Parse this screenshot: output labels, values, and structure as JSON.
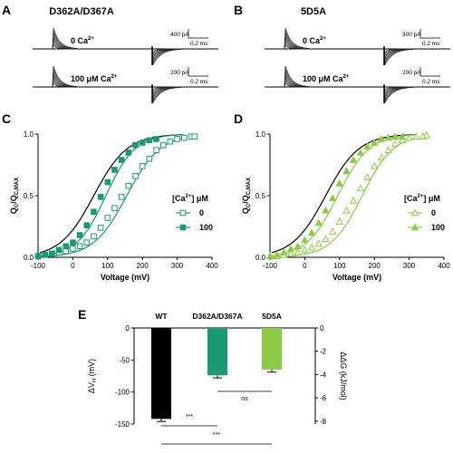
{
  "colors": {
    "teal": "#1a9a72",
    "lime": "#8ccc44",
    "black": "#000000",
    "wt_fit": "#000000"
  },
  "chart_data": [
    {
      "panel": "A",
      "type": "line",
      "title": "D362A/D367A",
      "traces": [
        {
          "label": "0 Ca",
          "label_sup": "2+",
          "scale_current": "400 pA",
          "scale_time": "0.2 ms"
        },
        {
          "label": "100 μM Ca",
          "label_sup": "2+",
          "scale_current": "200 pA",
          "scale_time": "0.2 ms"
        }
      ]
    },
    {
      "panel": "B",
      "type": "line",
      "title": "5D5A",
      "traces": [
        {
          "label": "0 Ca",
          "label_sup": "2+",
          "scale_current": "300 pA",
          "scale_time": "0.2 ms"
        },
        {
          "label": "100 μM Ca",
          "label_sup": "2+",
          "scale_current": "200 pA",
          "scale_time": "0.2 ms"
        }
      ]
    },
    {
      "panel": "C",
      "type": "scatter",
      "xlabel": "Voltage (mV)",
      "ylabel": "Q_C/Q_C,MAX",
      "ylabel_main": "Q",
      "ylabel_sub1": "C",
      "ylabel_mid": "/Q",
      "ylabel_sub2": "C,MAX",
      "xlim": [
        -100,
        400
      ],
      "ylim": [
        0,
        1
      ],
      "xticks": [
        "-100",
        "0",
        "100",
        "200",
        "300",
        "400"
      ],
      "yticks": [
        "0.0",
        "0.5",
        "1.0"
      ],
      "legend_title": "[Ca",
      "legend_title_sup": "2+",
      "legend_title_end": "] μM",
      "legend_position": "right",
      "fit_wt": {
        "vh": 60,
        "slope": 48
      },
      "series": [
        {
          "name": "0",
          "color": "#1a9a72",
          "marker": "square-open",
          "vh": 155,
          "slope": 48,
          "x": [
            -100,
            -80,
            -60,
            -40,
            -20,
            0,
            20,
            40,
            60,
            80,
            100,
            120,
            140,
            160,
            180,
            200,
            220,
            240,
            260,
            280,
            300,
            320,
            340,
            350
          ],
          "y": [
            0.01,
            0.02,
            0.03,
            0.04,
            0.05,
            0.07,
            0.09,
            0.12,
            0.17,
            0.24,
            0.32,
            0.4,
            0.49,
            0.58,
            0.66,
            0.74,
            0.8,
            0.87,
            0.91,
            0.94,
            0.96,
            0.97,
            0.98,
            0.98
          ]
        },
        {
          "name": "100",
          "color": "#1a9a72",
          "marker": "square-filled",
          "vh": 95,
          "slope": 42,
          "x": [
            -100,
            -80,
            -60,
            -40,
            -20,
            0,
            20,
            40,
            60,
            80,
            100,
            120,
            140,
            160,
            180,
            200,
            220,
            240
          ],
          "y": [
            0.01,
            0.02,
            0.03,
            0.06,
            0.09,
            0.12,
            0.18,
            0.26,
            0.37,
            0.49,
            0.61,
            0.71,
            0.79,
            0.85,
            0.91,
            0.93,
            0.95,
            0.96
          ]
        }
      ]
    },
    {
      "panel": "D",
      "type": "scatter",
      "xlabel": "Voltage (mV)",
      "ylabel": "Q_C/Q_C,MAX",
      "ylabel_main": "Q",
      "ylabel_sub1": "C",
      "ylabel_mid": "/Q",
      "ylabel_sub2": "C,MAX",
      "xlim": [
        -100,
        400
      ],
      "ylim": [
        0,
        1
      ],
      "xticks": [
        "-100",
        "0",
        "100",
        "200",
        "300",
        "400"
      ],
      "yticks": [
        "0.0",
        "0.5",
        "1.0"
      ],
      "legend_title": "[Ca",
      "legend_title_sup": "2+",
      "legend_title_end": "] μM",
      "legend_position": "right",
      "fit_wt": {
        "vh": 60,
        "slope": 48
      },
      "series": [
        {
          "name": "0",
          "color": "#8ccc44",
          "marker": "triangle-open",
          "vh": 165,
          "slope": 45,
          "x": [
            -100,
            -80,
            -60,
            -40,
            -20,
            0,
            20,
            40,
            60,
            80,
            100,
            120,
            140,
            160,
            180,
            200,
            220,
            240,
            260,
            280,
            300,
            320,
            340,
            350
          ],
          "y": [
            0.01,
            0.01,
            0.02,
            0.03,
            0.04,
            0.06,
            0.08,
            0.11,
            0.15,
            0.21,
            0.29,
            0.38,
            0.46,
            0.56,
            0.65,
            0.74,
            0.81,
            0.87,
            0.92,
            0.95,
            0.97,
            0.98,
            0.98,
            0.99
          ]
        },
        {
          "name": "100",
          "color": "#8ccc44",
          "marker": "triangle-filled",
          "vh": 95,
          "slope": 45,
          "x": [
            -100,
            -80,
            -60,
            -40,
            -20,
            0,
            20,
            40,
            60,
            80,
            100,
            120,
            140,
            160,
            180,
            200,
            220,
            240,
            260,
            280
          ],
          "y": [
            0.01,
            0.02,
            0.04,
            0.07,
            0.09,
            0.14,
            0.2,
            0.28,
            0.38,
            0.48,
            0.6,
            0.7,
            0.79,
            0.85,
            0.9,
            0.93,
            0.96,
            0.97,
            0.98,
            0.98
          ]
        }
      ]
    },
    {
      "panel": "E",
      "type": "bar",
      "categories": [
        "WT",
        "D362A/D367A",
        "5D5A"
      ],
      "values": [
        -142,
        -74,
        -65
      ],
      "errors": [
        4,
        4,
        4
      ],
      "colors": [
        "#000000",
        "#1a9a72",
        "#8ccc44"
      ],
      "ylabel": "ΔV_H (mV)",
      "ylabel_pre": "ΔV",
      "ylabel_sub": "H",
      "ylabel_post": " (mV)",
      "ylabel_right": "ΔΔG (kJ/mol)",
      "ylim": [
        -150,
        0
      ],
      "yticks": [
        "0",
        "-50",
        "-100",
        "-150"
      ],
      "yticks_right": [
        "0",
        "-2",
        "-4",
        "-6",
        "-8"
      ],
      "significance": [
        {
          "pair": [
            "WT",
            "D362A/D367A"
          ],
          "label": "***"
        },
        {
          "pair": [
            "D362A/D367A",
            "5D5A"
          ],
          "label": "ns"
        },
        {
          "pair": [
            "WT",
            "5D5A"
          ],
          "label": "***"
        }
      ]
    }
  ],
  "panel_letters": [
    "A",
    "B",
    "C",
    "D",
    "E"
  ]
}
